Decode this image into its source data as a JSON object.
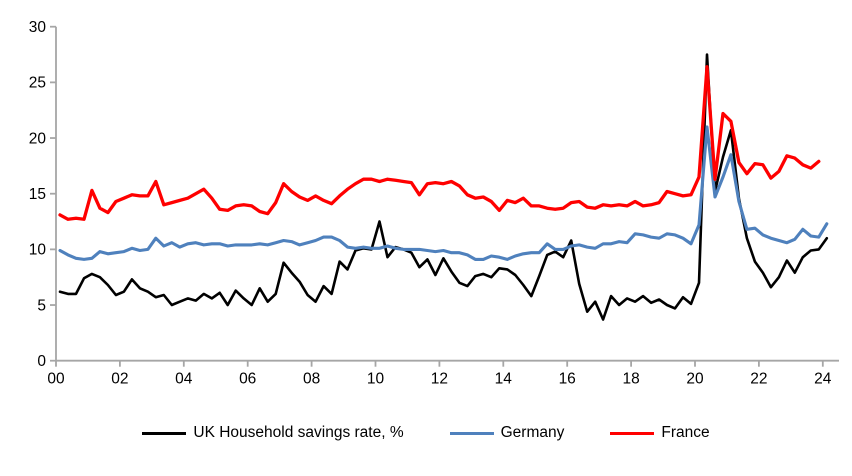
{
  "chart_data": {
    "type": "line",
    "title": "",
    "grid": false,
    "legend_position": "bottom",
    "frequency": "quarterly",
    "x_start_year": 2000,
    "x_axis": {
      "tick_years": [
        0,
        2,
        4,
        6,
        8,
        10,
        12,
        14,
        16,
        18,
        20,
        22,
        24
      ],
      "tick_labels": [
        "00",
        "02",
        "04",
        "06",
        "08",
        "10",
        "12",
        "14",
        "16",
        "18",
        "20",
        "22",
        "24"
      ]
    },
    "y_axis": {
      "min": 0,
      "max": 30,
      "ticks": [
        0,
        5,
        10,
        15,
        20,
        25,
        30
      ],
      "tick_labels": [
        "0",
        "5",
        "10",
        "15",
        "20",
        "25",
        "30"
      ]
    },
    "axis_color": "#a6a6a6",
    "series": [
      {
        "name": "UK Household savings rate, %",
        "color": "#000000",
        "values": [
          6.2,
          6.0,
          6.0,
          7.4,
          7.8,
          7.5,
          6.8,
          5.9,
          6.2,
          7.3,
          6.5,
          6.2,
          5.7,
          5.9,
          5.0,
          5.3,
          5.6,
          5.4,
          6.0,
          5.6,
          6.1,
          5.0,
          6.3,
          5.6,
          5.0,
          6.5,
          5.3,
          6.0,
          8.8,
          7.9,
          7.1,
          5.9,
          5.3,
          6.7,
          6.0,
          8.9,
          8.2,
          9.9,
          10.1,
          10.0,
          12.5,
          9.3,
          10.2,
          10.0,
          9.7,
          8.4,
          9.1,
          7.7,
          9.2,
          8.0,
          7.0,
          6.7,
          7.6,
          7.8,
          7.5,
          8.3,
          8.2,
          7.7,
          6.8,
          5.8,
          7.6,
          9.5,
          9.8,
          9.3,
          10.8,
          6.9,
          4.4,
          5.3,
          3.7,
          5.8,
          5.0,
          5.6,
          5.3,
          5.8,
          5.2,
          5.5,
          5.0,
          4.7,
          5.7,
          5.1,
          7.0,
          27.5,
          15.2,
          18.3,
          20.7,
          14.6,
          11.0,
          8.9,
          7.9,
          6.6,
          7.5,
          9.0,
          7.9,
          9.3,
          9.9,
          10.0,
          11.0
        ]
      },
      {
        "name": "Germany",
        "color": "#4F81BD",
        "values": [
          9.9,
          9.5,
          9.2,
          9.1,
          9.2,
          9.8,
          9.6,
          9.7,
          9.8,
          10.1,
          9.9,
          10.0,
          11.0,
          10.3,
          10.6,
          10.2,
          10.5,
          10.6,
          10.4,
          10.5,
          10.5,
          10.3,
          10.4,
          10.4,
          10.4,
          10.5,
          10.4,
          10.6,
          10.8,
          10.7,
          10.4,
          10.6,
          10.8,
          11.1,
          11.1,
          10.8,
          10.2,
          10.1,
          10.2,
          10.1,
          10.1,
          10.3,
          10.1,
          10.0,
          10.0,
          10.0,
          9.9,
          9.8,
          9.9,
          9.7,
          9.7,
          9.5,
          9.1,
          9.1,
          9.4,
          9.3,
          9.1,
          9.4,
          9.6,
          9.7,
          9.7,
          10.5,
          10.0,
          10.0,
          10.3,
          10.4,
          10.2,
          10.1,
          10.5,
          10.5,
          10.7,
          10.6,
          11.4,
          11.3,
          11.1,
          11.0,
          11.4,
          11.3,
          11.0,
          10.5,
          12.2,
          21.0,
          14.7,
          16.5,
          18.5,
          14.3,
          11.8,
          11.9,
          11.3,
          11.0,
          10.8,
          10.6,
          10.9,
          11.8,
          11.2,
          11.1,
          12.3
        ]
      },
      {
        "name": "France",
        "color": "#FF0000",
        "values": [
          13.1,
          12.7,
          12.8,
          12.7,
          15.3,
          13.7,
          13.3,
          14.3,
          14.6,
          14.9,
          14.8,
          14.8,
          16.1,
          14.0,
          14.2,
          14.4,
          14.6,
          15.0,
          15.4,
          14.6,
          13.6,
          13.5,
          13.9,
          14.0,
          13.9,
          13.4,
          13.2,
          14.2,
          15.9,
          15.2,
          14.7,
          14.4,
          14.8,
          14.4,
          14.1,
          14.8,
          15.4,
          15.9,
          16.3,
          16.3,
          16.1,
          16.3,
          16.2,
          16.1,
          16.0,
          14.9,
          15.9,
          16.0,
          15.9,
          16.1,
          15.7,
          14.9,
          14.6,
          14.7,
          14.3,
          13.5,
          14.4,
          14.2,
          14.6,
          13.9,
          13.9,
          13.7,
          13.6,
          13.7,
          14.2,
          14.3,
          13.8,
          13.7,
          14.0,
          13.9,
          14.0,
          13.9,
          14.3,
          13.9,
          14.0,
          14.2,
          15.2,
          15.0,
          14.8,
          14.9,
          16.5,
          26.4,
          16.3,
          22.2,
          21.5,
          17.8,
          16.8,
          17.7,
          17.6,
          16.4,
          17.0,
          18.4,
          18.2,
          17.6,
          17.3,
          17.9,
          null
        ]
      }
    ]
  }
}
